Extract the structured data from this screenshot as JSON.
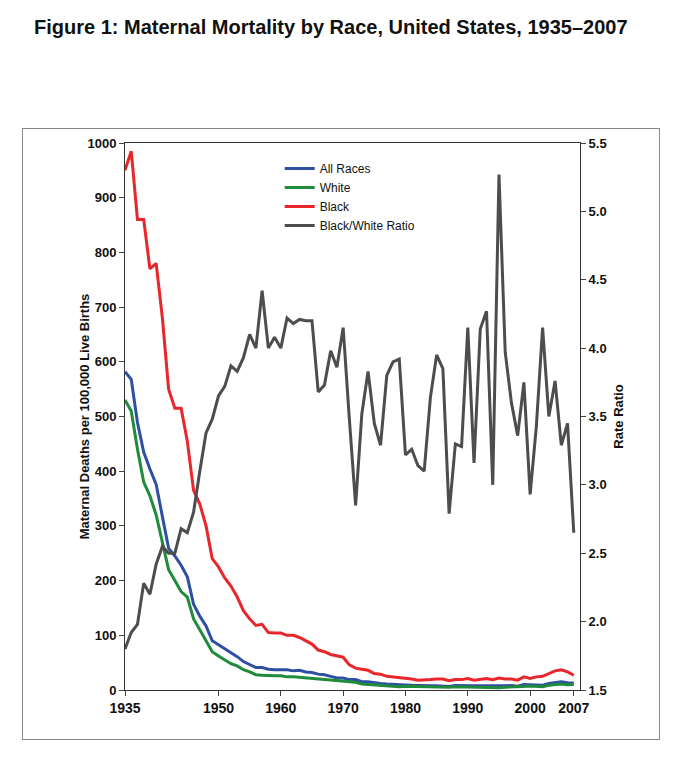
{
  "chart_data": {
    "type": "line",
    "title": "Figure 1: Maternal Mortality by Race, United States, 1935–2007",
    "x_label": "",
    "y_label": "Maternal Deaths per 100,000 Live Births",
    "y2_label": "Rate Ratio",
    "x": [
      1935,
      1936,
      1937,
      1938,
      1939,
      1940,
      1941,
      1942,
      1943,
      1944,
      1945,
      1946,
      1947,
      1948,
      1949,
      1950,
      1951,
      1952,
      1953,
      1954,
      1955,
      1956,
      1957,
      1958,
      1959,
      1960,
      1961,
      1962,
      1963,
      1964,
      1965,
      1966,
      1967,
      1968,
      1969,
      1970,
      1971,
      1972,
      1973,
      1974,
      1975,
      1976,
      1977,
      1978,
      1979,
      1980,
      1981,
      1982,
      1983,
      1984,
      1985,
      1986,
      1987,
      1988,
      1989,
      1990,
      1991,
      1992,
      1993,
      1994,
      1995,
      1996,
      1997,
      1998,
      1999,
      2000,
      2001,
      2002,
      2003,
      2004,
      2005,
      2006,
      2007
    ],
    "series": [
      {
        "name": "All Races",
        "color": "#2e4fa3",
        "values": [
          582,
          568,
          489,
          435,
          404,
          376,
          317,
          259,
          245,
          228,
          207,
          157,
          135,
          117,
          90,
          83,
          75,
          68,
          61,
          52,
          47,
          41,
          41,
          38,
          37,
          37,
          37,
          35,
          36,
          33,
          32,
          29,
          28,
          25,
          22,
          22,
          19,
          19,
          15,
          15,
          13,
          12,
          11,
          10,
          10,
          9,
          8.5,
          7.9,
          8,
          7.8,
          7.8,
          7.2,
          6.6,
          8.4,
          7.9,
          8.2,
          7.9,
          7.8,
          7.5,
          8.3,
          7.1,
          7.6,
          8.4,
          7.1,
          9.9,
          9.8,
          9.9,
          8.9,
          12.1,
          13.1,
          15.1,
          13.3,
          12.7
        ]
      },
      {
        "name": "White",
        "color": "#1e8c3a",
        "values": [
          530,
          510,
          440,
          380,
          355,
          320,
          270,
          220,
          200,
          180,
          170,
          130,
          110,
          90,
          70,
          62,
          55,
          48,
          44,
          37,
          33,
          28,
          27,
          26,
          26,
          26,
          24,
          24,
          23,
          22,
          21,
          20,
          19,
          17,
          16,
          15,
          14,
          14,
          11,
          10,
          9.1,
          9,
          7.7,
          7,
          6,
          6.7,
          6.3,
          5.8,
          5.9,
          5.9,
          5.2,
          5.1,
          5.1,
          5.9,
          5.6,
          5.4,
          5.8,
          5,
          5,
          5.4,
          4.2,
          5.1,
          5.1,
          5.1,
          6.4,
          7.5,
          7.2,
          6,
          8.7,
          9.3,
          11.1,
          9.5,
          10
        ]
      },
      {
        "name": "Black",
        "color": "#e8262b",
        "values": [
          950,
          985,
          860,
          860,
          770,
          780,
          680,
          550,
          515,
          515,
          455,
          365,
          340,
          300,
          240,
          225,
          205,
          190,
          170,
          145,
          130,
          118,
          120,
          105,
          104,
          104,
          100,
          100,
          96,
          90,
          84,
          73,
          70,
          65,
          62,
          60,
          46,
          40,
          38,
          36,
          30,
          29,
          25,
          24,
          22,
          22,
          20,
          18,
          18,
          19,
          20,
          20,
          17,
          19,
          19,
          21,
          18,
          20,
          21,
          19,
          22,
          20,
          20,
          18,
          24,
          21,
          24,
          25,
          30,
          35,
          37,
          33,
          27
        ]
      },
      {
        "name": "Black/White Ratio",
        "color": "#4d4d4d",
        "axis": "y2",
        "values": [
          1.8,
          1.92,
          1.98,
          2.28,
          2.2,
          2.42,
          2.55,
          2.5,
          2.5,
          2.68,
          2.65,
          2.8,
          3.1,
          3.38,
          3.48,
          3.65,
          3.72,
          3.87,
          3.83,
          3.93,
          4.1,
          4.0,
          4.42,
          4.0,
          4.08,
          4.0,
          4.22,
          4.18,
          4.21,
          4.2,
          4.2,
          3.68,
          3.73,
          3.98,
          3.86,
          4.15,
          3.48,
          2.85,
          3.52,
          3.83,
          3.45,
          3.29,
          3.8,
          3.9,
          3.92,
          3.22,
          3.26,
          3.14,
          3.1,
          3.64,
          3.95,
          3.85,
          2.79,
          3.3,
          3.28,
          4.15,
          3.16,
          4.14,
          4.27,
          3.0,
          5.27,
          3.97,
          3.6,
          3.36,
          3.75,
          2.93,
          3.43,
          4.15,
          3.5,
          3.76,
          3.29,
          3.45,
          2.65
        ]
      }
    ],
    "xlim": [
      1935,
      2008
    ],
    "xticks": [
      1935,
      1950,
      1960,
      1970,
      1980,
      1990,
      2000,
      2007
    ],
    "ylim": [
      0,
      1000
    ],
    "yticks": [
      0,
      100,
      200,
      300,
      400,
      500,
      600,
      700,
      800,
      900,
      1000
    ],
    "y2lim": [
      1.5,
      5.5
    ],
    "y2ticks": [
      1.5,
      {
        "value": 2,
        "label": "2.0"
      },
      2.5,
      {
        "value": 3,
        "label": "3.0"
      },
      3.5,
      {
        "value": 4,
        "label": "4.0"
      },
      4.5,
      {
        "value": 5,
        "label": "5.0"
      },
      5.5
    ],
    "legend": "top",
    "grid": false
  }
}
